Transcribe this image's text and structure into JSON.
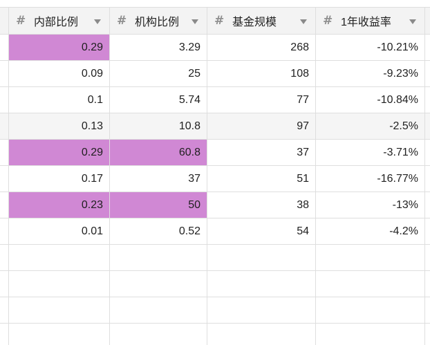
{
  "table": {
    "columns": [
      {
        "icon": "hash-icon",
        "label": "内部比例"
      },
      {
        "icon": "hash-icon",
        "label": "机构比例"
      },
      {
        "icon": "hash-icon",
        "label": "基金规模"
      },
      {
        "icon": "hash-icon",
        "label": "1年收益率"
      }
    ],
    "highlight_color": "#d088d4",
    "rows": [
      {
        "internal": "0.29",
        "institution": "3.29",
        "fund_size": "268",
        "return_1y": "-10.21%",
        "hl": [
          true,
          false
        ]
      },
      {
        "internal": "0.09",
        "institution": "25",
        "fund_size": "108",
        "return_1y": "-9.23%",
        "hl": [
          false,
          false
        ]
      },
      {
        "internal": "0.1",
        "institution": "5.74",
        "fund_size": "77",
        "return_1y": "-10.84%",
        "hl": [
          false,
          false
        ]
      },
      {
        "internal": "0.13",
        "institution": "10.8",
        "fund_size": "97",
        "return_1y": "-2.5%",
        "hl": [
          false,
          false
        ]
      },
      {
        "internal": "0.29",
        "institution": "60.8",
        "fund_size": "37",
        "return_1y": "-3.71%",
        "hl": [
          true,
          true
        ]
      },
      {
        "internal": "0.17",
        "institution": "37",
        "fund_size": "51",
        "return_1y": "-16.77%",
        "hl": [
          false,
          false
        ]
      },
      {
        "internal": "0.23",
        "institution": "50",
        "fund_size": "38",
        "return_1y": "-13%",
        "hl": [
          true,
          true
        ]
      },
      {
        "internal": "0.01",
        "institution": "0.52",
        "fund_size": "54",
        "return_1y": "-4.2%",
        "hl": [
          false,
          false
        ]
      }
    ]
  }
}
